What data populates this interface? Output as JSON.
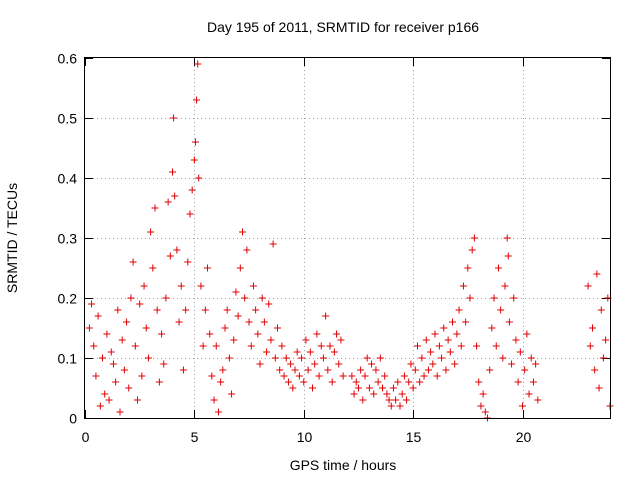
{
  "chart_data": {
    "type": "scatter",
    "title": "Day 195 of 2011, SRMTID for receiver p166",
    "xlabel": "GPS time / hours",
    "ylabel": "SRMTID / TECUs",
    "xlim": [
      0,
      24
    ],
    "ylim": [
      0,
      0.6
    ],
    "xticks": [
      0,
      5,
      10,
      15,
      20
    ],
    "yticks": [
      0,
      0.1,
      0.2,
      0.3,
      0.4,
      0.5,
      0.6
    ],
    "grid": true,
    "marker": "plus",
    "color": "#e00000",
    "series": [
      {
        "name": "SRMTID",
        "points": [
          [
            0.2,
            0.15
          ],
          [
            0.3,
            0.19
          ],
          [
            0.4,
            0.12
          ],
          [
            0.5,
            0.07
          ],
          [
            0.6,
            0.17
          ],
          [
            0.7,
            0.02
          ],
          [
            0.8,
            0.1
          ],
          [
            0.9,
            0.04
          ],
          [
            1.0,
            0.14
          ],
          [
            1.1,
            0.03
          ],
          [
            1.2,
            0.11
          ],
          [
            1.3,
            0.09
          ],
          [
            1.4,
            0.06
          ],
          [
            1.5,
            0.18
          ],
          [
            1.6,
            0.01
          ],
          [
            1.7,
            0.13
          ],
          [
            1.8,
            0.08
          ],
          [
            1.9,
            0.16
          ],
          [
            2.0,
            0.05
          ],
          [
            2.1,
            0.2
          ],
          [
            2.2,
            0.26
          ],
          [
            2.3,
            0.12
          ],
          [
            2.4,
            0.03
          ],
          [
            2.5,
            0.19
          ],
          [
            2.6,
            0.07
          ],
          [
            2.7,
            0.22
          ],
          [
            2.8,
            0.15
          ],
          [
            2.9,
            0.1
          ],
          [
            3.0,
            0.31
          ],
          [
            3.1,
            0.25
          ],
          [
            3.2,
            0.35
          ],
          [
            3.3,
            0.18
          ],
          [
            3.4,
            0.06
          ],
          [
            3.5,
            0.14
          ],
          [
            3.6,
            0.09
          ],
          [
            3.7,
            0.2
          ],
          [
            3.8,
            0.36
          ],
          [
            3.9,
            0.27
          ],
          [
            4.0,
            0.41
          ],
          [
            4.05,
            0.5
          ],
          [
            4.1,
            0.37
          ],
          [
            4.2,
            0.28
          ],
          [
            4.3,
            0.16
          ],
          [
            4.4,
            0.22
          ],
          [
            4.5,
            0.08
          ],
          [
            4.6,
            0.18
          ],
          [
            4.7,
            0.26
          ],
          [
            4.8,
            0.34
          ],
          [
            4.9,
            0.38
          ],
          [
            5.0,
            0.43
          ],
          [
            5.05,
            0.46
          ],
          [
            5.1,
            0.53
          ],
          [
            5.15,
            0.59
          ],
          [
            5.2,
            0.4
          ],
          [
            5.3,
            0.22
          ],
          [
            5.4,
            0.12
          ],
          [
            5.5,
            0.18
          ],
          [
            5.6,
            0.25
          ],
          [
            5.7,
            0.14
          ],
          [
            5.8,
            0.07
          ],
          [
            5.9,
            0.03
          ],
          [
            6.0,
            0.12
          ],
          [
            6.1,
            0.01
          ],
          [
            6.2,
            0.06
          ],
          [
            6.3,
            0.08
          ],
          [
            6.4,
            0.15
          ],
          [
            6.5,
            0.18
          ],
          [
            6.6,
            0.1
          ],
          [
            6.7,
            0.04
          ],
          [
            6.8,
            0.13
          ],
          [
            6.9,
            0.21
          ],
          [
            7.0,
            0.17
          ],
          [
            7.1,
            0.25
          ],
          [
            7.2,
            0.31
          ],
          [
            7.3,
            0.2
          ],
          [
            7.4,
            0.28
          ],
          [
            7.5,
            0.16
          ],
          [
            7.6,
            0.12
          ],
          [
            7.7,
            0.22
          ],
          [
            7.8,
            0.18
          ],
          [
            7.9,
            0.14
          ],
          [
            8.0,
            0.09
          ],
          [
            8.1,
            0.2
          ],
          [
            8.2,
            0.16
          ],
          [
            8.3,
            0.11
          ],
          [
            8.4,
            0.19
          ],
          [
            8.5,
            0.13
          ],
          [
            8.6,
            0.29
          ],
          [
            8.7,
            0.1
          ],
          [
            8.8,
            0.15
          ],
          [
            8.9,
            0.08
          ],
          [
            9.0,
            0.12
          ],
          [
            9.1,
            0.07
          ],
          [
            9.2,
            0.1
          ],
          [
            9.3,
            0.06
          ],
          [
            9.4,
            0.09
          ],
          [
            9.5,
            0.05
          ],
          [
            9.6,
            0.08
          ],
          [
            9.7,
            0.11
          ],
          [
            9.8,
            0.07
          ],
          [
            9.9,
            0.1
          ],
          [
            10.0,
            0.06
          ],
          [
            10.1,
            0.13
          ],
          [
            10.2,
            0.08
          ],
          [
            10.3,
            0.11
          ],
          [
            10.4,
            0.05
          ],
          [
            10.5,
            0.09
          ],
          [
            10.6,
            0.14
          ],
          [
            10.7,
            0.07
          ],
          [
            10.8,
            0.12
          ],
          [
            10.9,
            0.1
          ],
          [
            11.0,
            0.17
          ],
          [
            11.1,
            0.08
          ],
          [
            11.2,
            0.12
          ],
          [
            11.3,
            0.06
          ],
          [
            11.4,
            0.11
          ],
          [
            11.5,
            0.14
          ],
          [
            11.6,
            0.09
          ],
          [
            11.7,
            0.13
          ],
          [
            11.8,
            0.07
          ],
          [
            12.2,
            0.07
          ],
          [
            12.3,
            0.04
          ],
          [
            12.4,
            0.06
          ],
          [
            12.5,
            0.05
          ],
          [
            12.6,
            0.08
          ],
          [
            12.7,
            0.03
          ],
          [
            12.8,
            0.07
          ],
          [
            12.9,
            0.1
          ],
          [
            13.0,
            0.05
          ],
          [
            13.1,
            0.09
          ],
          [
            13.2,
            0.04
          ],
          [
            13.3,
            0.08
          ],
          [
            13.4,
            0.06
          ],
          [
            13.5,
            0.1
          ],
          [
            13.6,
            0.05
          ],
          [
            13.7,
            0.07
          ],
          [
            13.8,
            0.04
          ],
          [
            13.9,
            0.03
          ],
          [
            14.0,
            0.02
          ],
          [
            14.1,
            0.05
          ],
          [
            14.2,
            0.03
          ],
          [
            14.3,
            0.06
          ],
          [
            14.4,
            0.02
          ],
          [
            14.5,
            0.04
          ],
          [
            14.6,
            0.07
          ],
          [
            14.7,
            0.03
          ],
          [
            14.8,
            0.06
          ],
          [
            14.9,
            0.09
          ],
          [
            15.0,
            0.05
          ],
          [
            15.1,
            0.08
          ],
          [
            15.2,
            0.12
          ],
          [
            15.3,
            0.06
          ],
          [
            15.4,
            0.1
          ],
          [
            15.5,
            0.07
          ],
          [
            15.6,
            0.13
          ],
          [
            15.7,
            0.08
          ],
          [
            15.8,
            0.11
          ],
          [
            15.9,
            0.09
          ],
          [
            16.0,
            0.14
          ],
          [
            16.1,
            0.07
          ],
          [
            16.2,
            0.12
          ],
          [
            16.3,
            0.1
          ],
          [
            16.4,
            0.15
          ],
          [
            16.5,
            0.08
          ],
          [
            16.6,
            0.13
          ],
          [
            16.7,
            0.11
          ],
          [
            16.8,
            0.16
          ],
          [
            16.9,
            0.09
          ],
          [
            17.0,
            0.14
          ],
          [
            17.1,
            0.18
          ],
          [
            17.2,
            0.12
          ],
          [
            17.3,
            0.22
          ],
          [
            17.4,
            0.16
          ],
          [
            17.5,
            0.25
          ],
          [
            17.6,
            0.2
          ],
          [
            17.7,
            0.28
          ],
          [
            17.8,
            0.3
          ],
          [
            17.9,
            0.12
          ],
          [
            18.0,
            0.06
          ],
          [
            18.1,
            0.02
          ],
          [
            18.2,
            0.04
          ],
          [
            18.3,
            0.01
          ],
          [
            18.4,
            0.0
          ],
          [
            18.5,
            0.08
          ],
          [
            18.6,
            0.15
          ],
          [
            18.7,
            0.2
          ],
          [
            18.8,
            0.12
          ],
          [
            18.9,
            0.25
          ],
          [
            19.0,
            0.18
          ],
          [
            19.1,
            0.1
          ],
          [
            19.2,
            0.22
          ],
          [
            19.3,
            0.3
          ],
          [
            19.35,
            0.27
          ],
          [
            19.4,
            0.16
          ],
          [
            19.5,
            0.09
          ],
          [
            19.6,
            0.2
          ],
          [
            19.7,
            0.13
          ],
          [
            19.8,
            0.06
          ],
          [
            19.9,
            0.11
          ],
          [
            20.0,
            0.02
          ],
          [
            20.1,
            0.08
          ],
          [
            20.2,
            0.14
          ],
          [
            20.3,
            0.04
          ],
          [
            20.4,
            0.1
          ],
          [
            20.5,
            0.06
          ],
          [
            20.6,
            0.09
          ],
          [
            20.7,
            0.03
          ],
          [
            23.0,
            0.22
          ],
          [
            23.1,
            0.12
          ],
          [
            23.2,
            0.15
          ],
          [
            23.3,
            0.08
          ],
          [
            23.4,
            0.24
          ],
          [
            23.5,
            0.05
          ],
          [
            23.6,
            0.18
          ],
          [
            23.7,
            0.1
          ],
          [
            23.8,
            0.13
          ],
          [
            23.9,
            0.2
          ],
          [
            24.0,
            0.02
          ]
        ]
      }
    ]
  }
}
